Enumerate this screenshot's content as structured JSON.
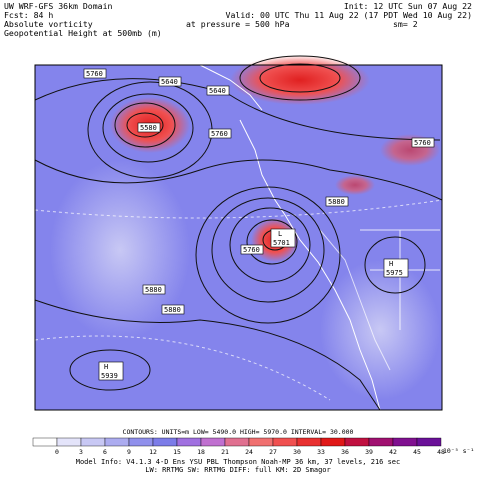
{
  "header": {
    "left": [
      "UW WRF-GFS 36km Domain",
      "Fcst:  84 h",
      "Absolute vorticity",
      "Geopotential Height at 500mb (m)"
    ],
    "right": [
      "Init: 12 UTC Sun 07 Aug 22",
      "Valid: 00 UTC Thu 11 Aug 22 (17 PDT Wed 10 Aug 22)",
      "at pressure =  500 hPa",
      "sm= 2"
    ]
  },
  "map": {
    "contour_labels": [
      "5760",
      "5640",
      "5640",
      "5580",
      "5760",
      "5760",
      "5880",
      "5760",
      "L",
      "5701",
      "5880",
      "5880",
      "H",
      "5975",
      "H",
      "5939"
    ]
  },
  "contours_info": "CONTOURS:  UNITS=m  LOW=  5490.0    HIGH=  5970.0     INTERVAL=  30.000",
  "colorbar": {
    "ticks": [
      0,
      3,
      6,
      9,
      12,
      15,
      18,
      21,
      24,
      27,
      30,
      33,
      36,
      39,
      42,
      45,
      48
    ],
    "units": "10⁻⁵ s⁻¹"
  },
  "model_info": [
    "Model Info: V4.1.3   4-D Ens YSU PBL   Thompson   Noah-MP   36 km, 37 levels, 216 sec",
    "LW: RRTMG  SW: RRTMG  DIFF: full  KM: 2D Smagor"
  ]
}
